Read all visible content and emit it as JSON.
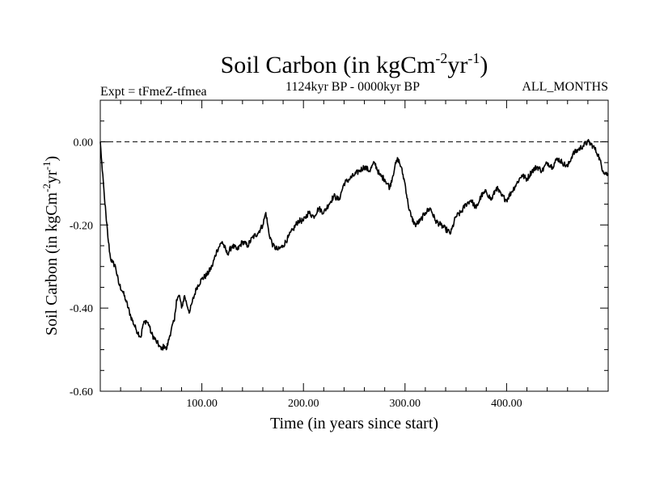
{
  "chart_data": {
    "type": "line",
    "title": "Soil Carbon (in kgCm",
    "title_sup1": "-2",
    "title_mid": "yr",
    "title_sup2": "-1",
    "title_end": ")",
    "subtitle_left": "Expt = tFmeZ-tfmea",
    "subtitle_center": "1124kyr BP - 0000kyr BP",
    "subtitle_right": "ALL_MONTHS",
    "xlabel": "Time (in years since start)",
    "ylabel": "Soil Carbon (in kgCm",
    "ylabel_sup1": "-2",
    "ylabel_mid": "yr",
    "ylabel_sup2": "-1",
    "ylabel_end": ")",
    "xlim": [
      0,
      500
    ],
    "ylim": [
      -0.6,
      0.1
    ],
    "xticks": [
      100,
      200,
      300,
      400
    ],
    "xtick_labels": [
      "100.00",
      "200.00",
      "300.00",
      "400.00"
    ],
    "yticks": [
      0.0,
      -0.2,
      -0.4,
      -0.6
    ],
    "ytick_labels": [
      "0.00",
      "-0.20",
      "-0.40",
      "-0.60"
    ],
    "reference_line": {
      "y": 0.0,
      "style": "dashed"
    },
    "series": [
      {
        "name": "Soil Carbon",
        "x": [
          0,
          2,
          4,
          6,
          8,
          10,
          12,
          15,
          18,
          22,
          25,
          30,
          35,
          40,
          42,
          45,
          48,
          50,
          55,
          58,
          60,
          63,
          65,
          68,
          70,
          73,
          75,
          78,
          80,
          83,
          85,
          88,
          90,
          95,
          100,
          105,
          110,
          115,
          120,
          125,
          130,
          135,
          140,
          145,
          150,
          155,
          160,
          163,
          166,
          170,
          175,
          180,
          185,
          190,
          195,
          200,
          205,
          210,
          215,
          220,
          225,
          230,
          235,
          240,
          245,
          250,
          255,
          260,
          265,
          270,
          275,
          280,
          285,
          290,
          293,
          296,
          300,
          303,
          306,
          310,
          315,
          320,
          325,
          330,
          335,
          340,
          345,
          350,
          355,
          360,
          365,
          370,
          375,
          380,
          385,
          390,
          395,
          400,
          405,
          410,
          415,
          420,
          425,
          430,
          435,
          440,
          445,
          450,
          455,
          460,
          465,
          470,
          475,
          480,
          485,
          490,
          495,
          500
        ],
        "values": [
          0.0,
          -0.07,
          -0.13,
          -0.19,
          -0.24,
          -0.28,
          -0.29,
          -0.3,
          -0.34,
          -0.36,
          -0.38,
          -0.42,
          -0.45,
          -0.47,
          -0.44,
          -0.43,
          -0.44,
          -0.46,
          -0.48,
          -0.49,
          -0.5,
          -0.49,
          -0.5,
          -0.47,
          -0.45,
          -0.43,
          -0.38,
          -0.37,
          -0.4,
          -0.37,
          -0.39,
          -0.41,
          -0.39,
          -0.35,
          -0.33,
          -0.32,
          -0.3,
          -0.26,
          -0.24,
          -0.27,
          -0.25,
          -0.26,
          -0.24,
          -0.25,
          -0.23,
          -0.22,
          -0.2,
          -0.17,
          -0.22,
          -0.25,
          -0.26,
          -0.25,
          -0.23,
          -0.21,
          -0.19,
          -0.19,
          -0.17,
          -0.18,
          -0.16,
          -0.17,
          -0.15,
          -0.13,
          -0.14,
          -0.1,
          -0.09,
          -0.08,
          -0.07,
          -0.06,
          -0.07,
          -0.05,
          -0.08,
          -0.09,
          -0.11,
          -0.06,
          -0.04,
          -0.06,
          -0.1,
          -0.15,
          -0.18,
          -0.2,
          -0.19,
          -0.17,
          -0.16,
          -0.19,
          -0.2,
          -0.21,
          -0.22,
          -0.18,
          -0.17,
          -0.15,
          -0.14,
          -0.16,
          -0.13,
          -0.12,
          -0.14,
          -0.11,
          -0.13,
          -0.14,
          -0.12,
          -0.1,
          -0.08,
          -0.09,
          -0.07,
          -0.06,
          -0.07,
          -0.05,
          -0.06,
          -0.04,
          -0.05,
          -0.06,
          -0.03,
          -0.02,
          -0.01,
          0.0,
          -0.01,
          -0.03,
          -0.07,
          -0.08
        ]
      }
    ]
  }
}
